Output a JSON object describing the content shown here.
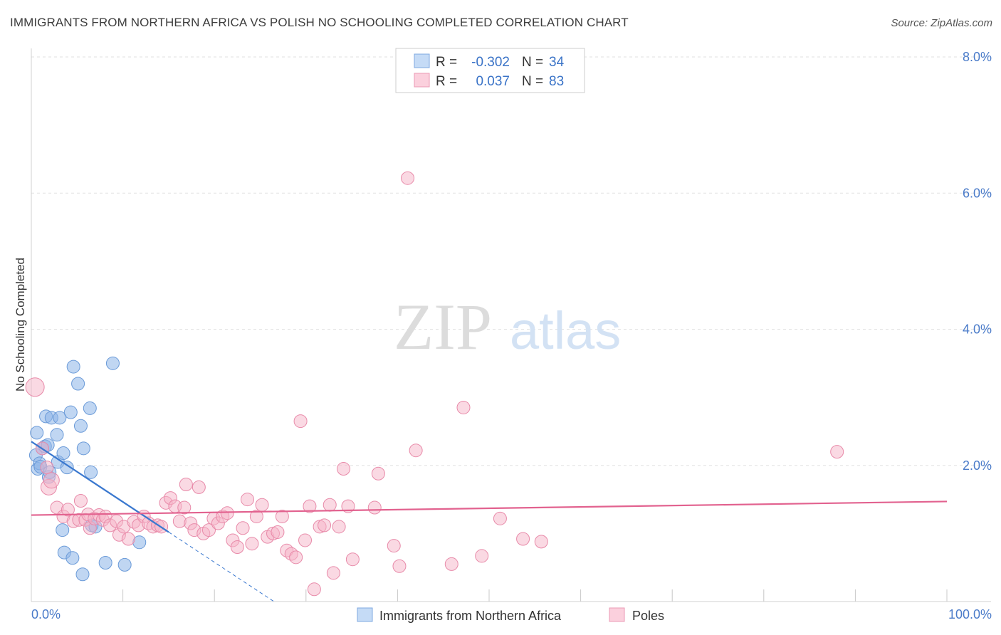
{
  "chart_data": {
    "type": "scatter",
    "title": "IMMIGRANTS FROM NORTHERN AFRICA VS POLISH NO SCHOOLING COMPLETED CORRELATION CHART",
    "source": "Source: ZipAtlas.com",
    "xlabel": "",
    "ylabel": "No Schooling Completed",
    "xlim": [
      0,
      100
    ],
    "ylim": [
      0,
      8
    ],
    "x_tick_labels": {
      "min": "0.0%",
      "max": "100.0%"
    },
    "y_ticks": [
      {
        "value": 2,
        "label": "2.0%"
      },
      {
        "value": 4,
        "label": "4.0%"
      },
      {
        "value": 6,
        "label": "6.0%"
      },
      {
        "value": 8,
        "label": "8.0%"
      }
    ],
    "grid": true,
    "legend_position": "bottom-center",
    "watermark": {
      "zip": "ZIP",
      "atlas": "atlas"
    },
    "stats": [
      {
        "series": "Immigrants from Northern Africa",
        "r_label": "R =",
        "r_value": "-0.302",
        "n_label": "N =",
        "n_value": "34"
      },
      {
        "series": "Poles",
        "r_label": "R =",
        "r_value": "0.037",
        "n_label": "N =",
        "n_value": "83"
      }
    ],
    "series": [
      {
        "name": "Immigrants from Northern Africa",
        "color": "#8db4e8",
        "stroke": "#6a9ad8",
        "line_color": "#3a78cf",
        "trend": {
          "x0": 0,
          "y0": 2.35,
          "x1": 15,
          "y1": 1.02,
          "dash_to_x": 26.5
        },
        "points": [
          [
            0.5,
            2.15
          ],
          [
            0.6,
            2.48
          ],
          [
            0.7,
            1.95
          ],
          [
            0.9,
            2.03
          ],
          [
            1.0,
            1.98
          ],
          [
            1.2,
            2.25
          ],
          [
            1.5,
            2.28
          ],
          [
            1.6,
            2.72
          ],
          [
            1.8,
            2.3
          ],
          [
            1.9,
            1.83
          ],
          [
            2.0,
            1.9
          ],
          [
            2.2,
            2.7
          ],
          [
            2.8,
            2.45
          ],
          [
            2.9,
            2.05
          ],
          [
            3.1,
            2.7
          ],
          [
            3.4,
            1.05
          ],
          [
            3.5,
            2.18
          ],
          [
            3.6,
            0.72
          ],
          [
            3.9,
            1.97
          ],
          [
            4.3,
            2.78
          ],
          [
            4.5,
            0.64
          ],
          [
            4.6,
            3.45
          ],
          [
            5.1,
            3.2
          ],
          [
            5.4,
            2.58
          ],
          [
            5.6,
            0.4
          ],
          [
            5.7,
            2.25
          ],
          [
            6.4,
            2.84
          ],
          [
            6.5,
            1.9
          ],
          [
            6.6,
            1.12
          ],
          [
            7.0,
            1.1
          ],
          [
            8.1,
            0.57
          ],
          [
            8.9,
            3.5
          ],
          [
            10.2,
            0.54
          ],
          [
            11.8,
            0.87
          ]
        ]
      },
      {
        "name": "Poles",
        "color": "#f5b3c8",
        "stroke": "#e88aa9",
        "line_color": "#e2628f",
        "trend": {
          "x0": 0,
          "y0": 1.27,
          "x1": 100,
          "y1": 1.47
        },
        "points": [
          [
            0.4,
            3.15
          ],
          [
            1.2,
            2.25
          ],
          [
            1.7,
            1.97
          ],
          [
            1.9,
            1.68
          ],
          [
            2.2,
            1.78
          ],
          [
            2.8,
            1.38
          ],
          [
            3.5,
            1.25
          ],
          [
            4.0,
            1.35
          ],
          [
            4.6,
            1.18
          ],
          [
            5.2,
            1.2
          ],
          [
            5.4,
            1.48
          ],
          [
            5.9,
            1.2
          ],
          [
            6.2,
            1.28
          ],
          [
            6.4,
            1.08
          ],
          [
            6.9,
            1.22
          ],
          [
            7.4,
            1.27
          ],
          [
            7.8,
            1.2
          ],
          [
            8.1,
            1.25
          ],
          [
            8.6,
            1.12
          ],
          [
            9.3,
            1.18
          ],
          [
            9.6,
            0.98
          ],
          [
            10.1,
            1.1
          ],
          [
            10.6,
            0.92
          ],
          [
            11.2,
            1.17
          ],
          [
            11.7,
            1.12
          ],
          [
            12.3,
            1.25
          ],
          [
            12.8,
            1.15
          ],
          [
            13.3,
            1.1
          ],
          [
            13.8,
            1.12
          ],
          [
            14.2,
            1.1
          ],
          [
            14.7,
            1.45
          ],
          [
            15.2,
            1.52
          ],
          [
            15.7,
            1.4
          ],
          [
            16.2,
            1.18
          ],
          [
            16.7,
            1.38
          ],
          [
            16.9,
            1.72
          ],
          [
            17.4,
            1.15
          ],
          [
            17.8,
            1.05
          ],
          [
            18.3,
            1.68
          ],
          [
            18.8,
            1.0
          ],
          [
            19.4,
            1.05
          ],
          [
            19.9,
            1.22
          ],
          [
            20.4,
            1.15
          ],
          [
            20.9,
            1.25
          ],
          [
            21.4,
            1.3
          ],
          [
            22.0,
            0.9
          ],
          [
            22.5,
            0.8
          ],
          [
            23.1,
            1.08
          ],
          [
            23.6,
            1.5
          ],
          [
            24.1,
            0.85
          ],
          [
            24.6,
            1.25
          ],
          [
            25.2,
            1.42
          ],
          [
            25.8,
            0.95
          ],
          [
            26.4,
            1.0
          ],
          [
            26.9,
            1.02
          ],
          [
            27.4,
            1.25
          ],
          [
            27.9,
            0.75
          ],
          [
            28.4,
            0.7
          ],
          [
            28.9,
            0.65
          ],
          [
            29.4,
            2.65
          ],
          [
            29.9,
            0.9
          ],
          [
            30.4,
            1.4
          ],
          [
            30.9,
            0.18
          ],
          [
            31.5,
            1.1
          ],
          [
            32.0,
            1.12
          ],
          [
            32.6,
            1.42
          ],
          [
            33.0,
            0.42
          ],
          [
            33.6,
            1.1
          ],
          [
            34.1,
            1.95
          ],
          [
            34.6,
            1.4
          ],
          [
            35.1,
            0.62
          ],
          [
            37.5,
            1.38
          ],
          [
            37.9,
            1.88
          ],
          [
            39.6,
            0.82
          ],
          [
            40.2,
            0.52
          ],
          [
            41.1,
            6.22
          ],
          [
            42.0,
            2.22
          ],
          [
            45.9,
            0.55
          ],
          [
            47.2,
            2.85
          ],
          [
            49.2,
            0.67
          ],
          [
            51.2,
            1.22
          ],
          [
            53.7,
            0.92
          ],
          [
            55.7,
            0.88
          ],
          [
            88.0,
            2.2
          ]
        ]
      }
    ]
  }
}
